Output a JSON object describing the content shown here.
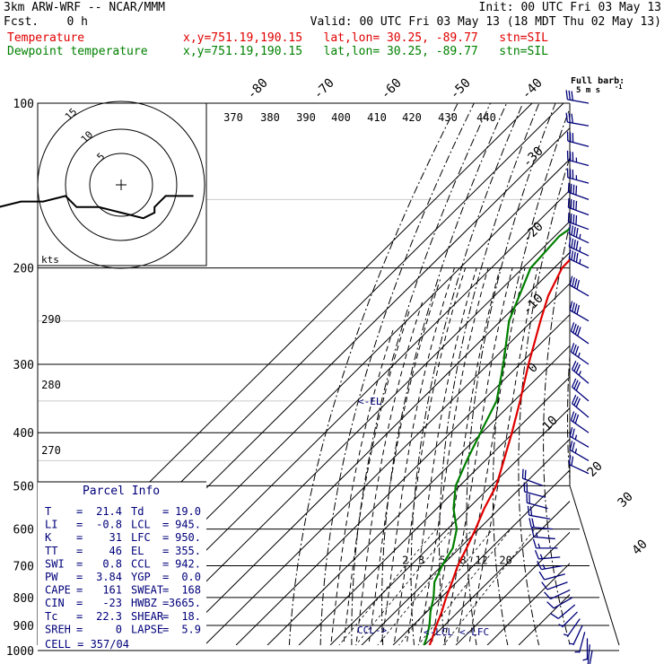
{
  "header": {
    "model": "3km ARW-WRF -- NCAR/MMM",
    "fcst": "Fcst.    0 h",
    "init": "Init: 00 UTC Fri 03 May 13",
    "valid": "Valid: 00 UTC Fri 03 May 13 (18 MDT Thu 02 May 13)",
    "temp_label": "Temperature",
    "dew_label": "Dewpoint temperature",
    "temp_loc": "x,y=751.19,190.15   lat,lon= 30.25, -89.77   stn=SIL",
    "dew_loc": "x,y=751.19,190.15   lat,lon= 30.25, -89.77   stn=SIL"
  },
  "colors": {
    "temperature": "#e00000",
    "dewpoint": "#008000",
    "wind": "#00007a",
    "grid": "#000000",
    "lcl": "#00007a"
  },
  "chart_data": {
    "type": "line",
    "plot": "skew-T log-p",
    "pressure_levels": [
      100,
      200,
      300,
      400,
      500,
      600,
      700,
      800,
      900,
      1000
    ],
    "isotherm_labels": [
      "-80",
      "-70",
      "-60",
      "-50",
      "-40",
      "-30",
      "-20",
      "-10",
      "0",
      "10",
      "20",
      "30",
      "40"
    ],
    "theta_labels": [
      "370",
      "380",
      "390",
      "400",
      "410",
      "420",
      "430",
      "440",
      "290",
      "280",
      "270"
    ],
    "mixing_ratio_labels": [
      "2",
      "3",
      "5",
      "8",
      "12",
      "20"
    ],
    "series": [
      {
        "name": "Temperature",
        "values": [
          [
            1000,
            21.4
          ],
          [
            975,
            19.8
          ],
          [
            950,
            18.6
          ],
          [
            925,
            17.2
          ],
          [
            900,
            15.8
          ],
          [
            850,
            13.2
          ],
          [
            800,
            10.0
          ],
          [
            750,
            7.0
          ],
          [
            700,
            3.6
          ],
          [
            650,
            0.8
          ],
          [
            600,
            -2.4
          ],
          [
            550,
            -6.2
          ],
          [
            500,
            -9.6
          ],
          [
            450,
            -15.2
          ],
          [
            400,
            -21.5
          ],
          [
            350,
            -29.0
          ],
          [
            300,
            -38.0
          ],
          [
            250,
            -48.0
          ],
          [
            225,
            -53.5
          ],
          [
            200,
            -58.0
          ],
          [
            190,
            -58.2
          ],
          [
            175,
            -56.8
          ],
          [
            150,
            -59.5
          ],
          [
            125,
            -61.5
          ],
          [
            100,
            -70.0
          ]
        ]
      },
      {
        "name": "Dewpoint temperature",
        "values": [
          [
            1000,
            19.0
          ],
          [
            975,
            18.0
          ],
          [
            950,
            16.8
          ],
          [
            925,
            15.2
          ],
          [
            900,
            13.6
          ],
          [
            850,
            9.6
          ],
          [
            800,
            6.0
          ],
          [
            750,
            1.4
          ],
          [
            700,
            -1.4
          ],
          [
            650,
            -3.6
          ],
          [
            600,
            -8.4
          ],
          [
            550,
            -16.0
          ],
          [
            500,
            -22.5
          ],
          [
            450,
            -27.0
          ],
          [
            400,
            -31.5
          ],
          [
            350,
            -36.5
          ],
          [
            300,
            -46.0
          ],
          [
            250,
            -58.0
          ],
          [
            200,
            -68.0
          ],
          [
            175,
            -69.0
          ],
          [
            150,
            -64.0
          ],
          [
            125,
            -70.5
          ],
          [
            100,
            -67.0
          ]
        ]
      }
    ],
    "annotations": {
      "el": "<-EL",
      "lcl": "<-LCL",
      "lfc": "<-LFC",
      "ccl": "CCL->"
    },
    "wind_title": "Full barb:",
    "wind_units": "5 m s",
    "wind_units_exp": "-1",
    "winds": [
      [
        1000,
        190,
        2
      ],
      [
        975,
        185,
        3
      ],
      [
        950,
        180,
        4
      ],
      [
        925,
        195,
        4
      ],
      [
        900,
        205,
        3
      ],
      [
        875,
        215,
        3
      ],
      [
        850,
        225,
        4
      ],
      [
        825,
        230,
        5
      ],
      [
        800,
        240,
        5
      ],
      [
        775,
        245,
        6
      ],
      [
        750,
        250,
        7
      ],
      [
        725,
        255,
        7
      ],
      [
        700,
        260,
        8
      ],
      [
        675,
        265,
        8
      ],
      [
        650,
        270,
        9
      ],
      [
        625,
        275,
        9
      ],
      [
        600,
        275,
        10
      ],
      [
        575,
        280,
        10
      ],
      [
        550,
        285,
        10
      ],
      [
        525,
        285,
        11
      ],
      [
        500,
        290,
        12
      ],
      [
        475,
        295,
        12
      ],
      [
        450,
        300,
        13
      ],
      [
        425,
        300,
        14
      ],
      [
        400,
        305,
        15
      ],
      [
        375,
        310,
        16
      ],
      [
        350,
        310,
        17
      ],
      [
        325,
        310,
        18
      ],
      [
        300,
        305,
        19
      ],
      [
        275,
        305,
        20
      ],
      [
        250,
        300,
        21
      ],
      [
        225,
        300,
        22
      ],
      [
        200,
        295,
        23
      ],
      [
        190,
        295,
        23
      ],
      [
        180,
        295,
        23
      ],
      [
        170,
        290,
        22
      ],
      [
        160,
        290,
        21
      ],
      [
        150,
        290,
        20
      ],
      [
        140,
        285,
        19
      ],
      [
        130,
        285,
        18
      ],
      [
        120,
        285,
        17
      ],
      [
        110,
        280,
        16
      ],
      [
        100,
        280,
        15
      ]
    ],
    "hodograph": {
      "ring_labels": [
        "5",
        "10",
        "15"
      ],
      "kts_label": "kts",
      "trace": [
        [
          -47,
          -4
        ],
        [
          -42,
          -6
        ],
        [
          -38,
          -6
        ],
        [
          -34,
          -6
        ],
        [
          -32,
          -5
        ],
        [
          -28,
          -3
        ],
        [
          -25,
          -3
        ],
        [
          -22,
          -4
        ],
        [
          -18,
          -3
        ],
        [
          -14,
          -3
        ],
        [
          -10,
          -2
        ],
        [
          -8,
          -4
        ],
        [
          -4,
          -4
        ],
        [
          0,
          -5
        ],
        [
          4,
          -6
        ],
        [
          6,
          -5
        ],
        [
          6,
          -4
        ],
        [
          7,
          -3
        ],
        [
          8,
          -2
        ],
        [
          10,
          -2
        ],
        [
          13,
          -2
        ]
      ]
    }
  },
  "info": {
    "title": "Parcel Info",
    "rows": [
      {
        "k1": "T",
        "v1": "21.4",
        "k2": "Td",
        "v2": "19.0"
      },
      {
        "k1": "LI",
        "v1": "-0.8",
        "k2": "LCL",
        "v2": "945."
      },
      {
        "k1": "K",
        "v1": "31",
        "k2": "LFC",
        "v2": "950."
      },
      {
        "k1": "TT",
        "v1": "46",
        "k2": "EL",
        "v2": "355."
      },
      {
        "k1": "SWI",
        "v1": "0.8",
        "k2": "CCL",
        "v2": "942."
      },
      {
        "k1": "PW",
        "v1": "3.84",
        "k2": "YGP",
        "v2": "0.0"
      },
      {
        "k1": "CAPE",
        "v1": "161",
        "k2": "SWEAT",
        "v2": "168"
      },
      {
        "k1": "CIN",
        "v1": "-23",
        "k2": "HWBZ",
        "v2": "3665."
      },
      {
        "k1": "Tc",
        "v1": "22.3",
        "k2": "SHEAR",
        "v2": "18."
      },
      {
        "k1": "SREH",
        "v1": "0",
        "k2": "LAPSE",
        "v2": "5.9"
      }
    ],
    "cell_text": "CELL = 357/04"
  }
}
